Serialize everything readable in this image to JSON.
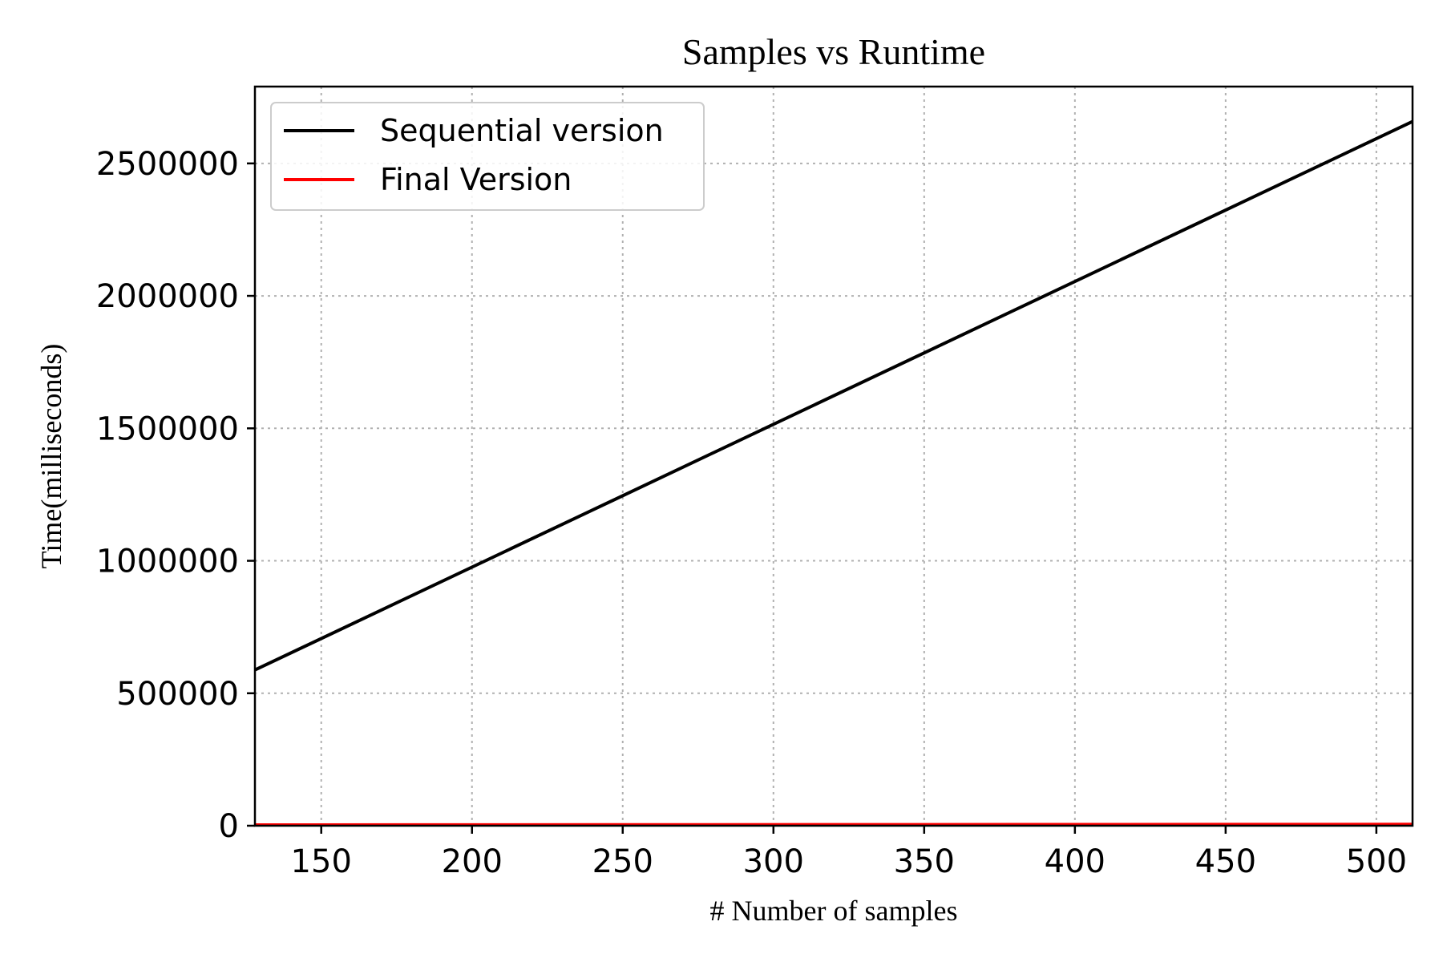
{
  "chart_data": {
    "type": "line",
    "title": "Samples vs Runtime",
    "xlabel": "# Number of samples",
    "ylabel": "Time(milliseconds)",
    "xlim": [
      128,
      512
    ],
    "ylim": [
      0,
      2790000
    ],
    "xticks": [
      150,
      200,
      250,
      300,
      350,
      400,
      450,
      500
    ],
    "xtick_labels": [
      "150",
      "200",
      "250",
      "300",
      "350",
      "400",
      "450",
      "500"
    ],
    "yticks": [
      0,
      500000,
      1000000,
      1500000,
      2000000,
      2500000
    ],
    "ytick_labels": [
      "0",
      "500000",
      "1000000",
      "1500000",
      "2000000",
      "2500000"
    ],
    "grid": true,
    "legend_position": "top-left",
    "series": [
      {
        "name": "Sequential version",
        "color": "#000000",
        "x": [
          128,
          512
        ],
        "y": [
          588000,
          2658000
        ]
      },
      {
        "name": "Final Version",
        "color": "#ff0000",
        "x": [
          128,
          512
        ],
        "y": [
          3000,
          5000
        ]
      }
    ]
  }
}
